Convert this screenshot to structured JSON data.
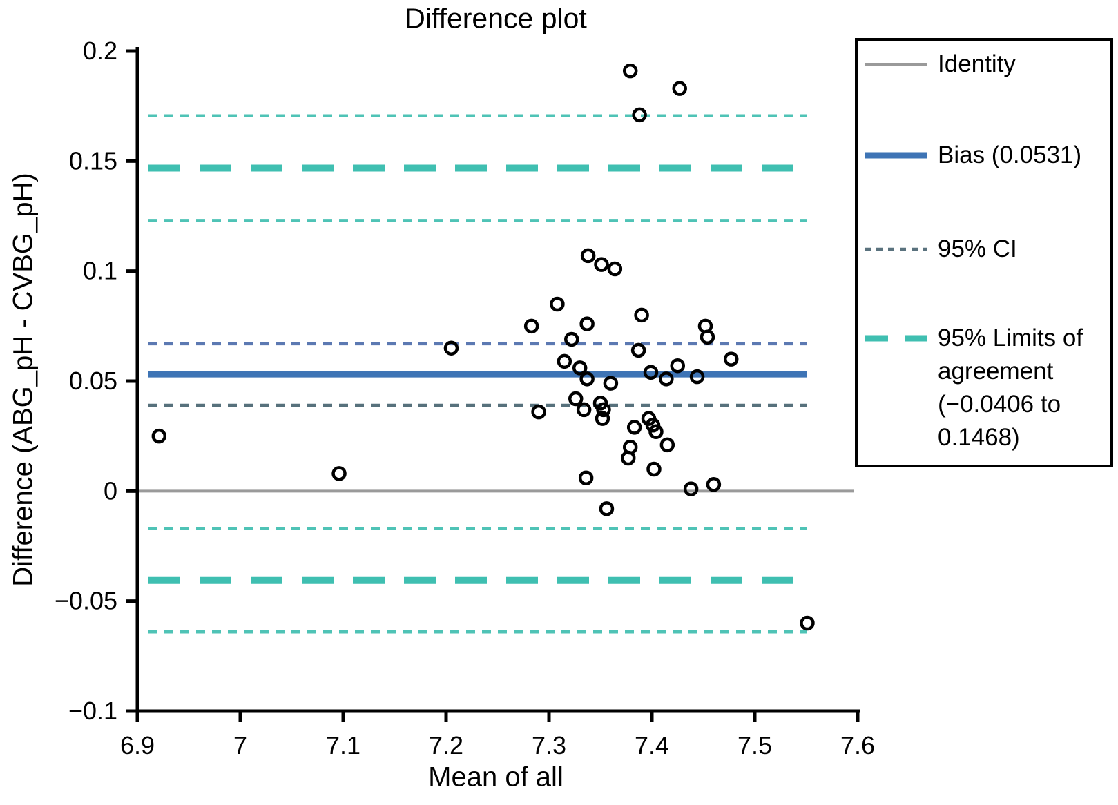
{
  "chart_data": {
    "type": "scatter",
    "title": "Difference plot",
    "xlabel": "Mean of all",
    "ylabel": "Difference (ABG_pH - CVBG_pH)",
    "xlim": [
      6.9,
      7.6
    ],
    "ylim": [
      -0.1,
      0.2
    ],
    "grid": false,
    "x_ticks": [
      {
        "value": 6.9,
        "label": "6.9"
      },
      {
        "value": 7.0,
        "label": "7"
      },
      {
        "value": 7.1,
        "label": "7.1"
      },
      {
        "value": 7.2,
        "label": "7.2"
      },
      {
        "value": 7.3,
        "label": "7.3"
      },
      {
        "value": 7.4,
        "label": "7.4"
      },
      {
        "value": 7.5,
        "label": "7.5"
      },
      {
        "value": 7.6,
        "label": "7.6"
      }
    ],
    "y_ticks": [
      {
        "value": 0.2,
        "label": "0.2"
      },
      {
        "value": 0.15,
        "label": "0.15"
      },
      {
        "value": 0.1,
        "label": "0.1"
      },
      {
        "value": 0.05,
        "label": "0.05"
      },
      {
        "value": 0,
        "label": "0"
      },
      {
        "value": -0.05,
        "label": "−0.05"
      },
      {
        "value": -0.1,
        "label": "−0.1"
      }
    ],
    "statistics": {
      "bias": 0.0531,
      "bias_ci": [
        0.039,
        0.067
      ],
      "loa_lower": -0.0406,
      "loa_upper": 0.1468,
      "loa_lower_ci": [
        -0.064,
        -0.017
      ],
      "loa_upper_ci": [
        0.123,
        0.1706
      ]
    },
    "lines": [
      {
        "name": "identity",
        "value": 0,
        "color": "#9A9A9A",
        "style": "solid",
        "weight": "thin",
        "full_width": true
      },
      {
        "name": "loa-upper-ci-upper",
        "value": 0.1706,
        "color": "#4FC3B6",
        "style": "dotted",
        "weight": "thin",
        "full_width": false
      },
      {
        "name": "loa-upper",
        "value": 0.1468,
        "color": "#3FBFB1",
        "style": "dashed",
        "weight": "thick",
        "full_width": false
      },
      {
        "name": "loa-upper-ci-lower",
        "value": 0.123,
        "color": "#4FC3B6",
        "style": "dotted",
        "weight": "thin",
        "full_width": false
      },
      {
        "name": "bias-ci-upper",
        "value": 0.067,
        "color": "#5C79B2",
        "style": "dotted",
        "weight": "thin",
        "full_width": false
      },
      {
        "name": "bias",
        "value": 0.0531,
        "color": "#3E74B5",
        "style": "solid",
        "weight": "thick",
        "full_width": false
      },
      {
        "name": "bias-ci-lower",
        "value": 0.039,
        "color": "#57717C",
        "style": "dotted",
        "weight": "thin",
        "full_width": false
      },
      {
        "name": "loa-lower-ci-upper",
        "value": -0.017,
        "color": "#4FC3B6",
        "style": "dotted",
        "weight": "thin",
        "full_width": false
      },
      {
        "name": "loa-lower",
        "value": -0.0406,
        "color": "#3FBFB1",
        "style": "dashed",
        "weight": "thick",
        "full_width": false
      },
      {
        "name": "loa-lower-ci-lower",
        "value": -0.064,
        "color": "#4FC3B6",
        "style": "dotted",
        "weight": "thin",
        "full_width": false
      }
    ],
    "marker": {
      "shape": "open-circle",
      "color": "#000000"
    },
    "points": [
      [
        6.921,
        0.025
      ],
      [
        7.096,
        0.008
      ],
      [
        7.205,
        0.065
      ],
      [
        7.283,
        0.075
      ],
      [
        7.29,
        0.036
      ],
      [
        7.308,
        0.085
      ],
      [
        7.315,
        0.059
      ],
      [
        7.322,
        0.069
      ],
      [
        7.326,
        0.042
      ],
      [
        7.33,
        0.056
      ],
      [
        7.334,
        0.037
      ],
      [
        7.336,
        0.006
      ],
      [
        7.337,
        0.076
      ],
      [
        7.337,
        0.051
      ],
      [
        7.338,
        0.107
      ],
      [
        7.35,
        0.04
      ],
      [
        7.351,
        0.103
      ],
      [
        7.352,
        0.033
      ],
      [
        7.353,
        0.037
      ],
      [
        7.356,
        -0.008
      ],
      [
        7.36,
        0.049
      ],
      [
        7.364,
        0.101
      ],
      [
        7.377,
        0.015
      ],
      [
        7.379,
        0.191
      ],
      [
        7.379,
        0.02
      ],
      [
        7.383,
        0.029
      ],
      [
        7.387,
        0.064
      ],
      [
        7.388,
        0.171
      ],
      [
        7.39,
        0.08
      ],
      [
        7.397,
        0.033
      ],
      [
        7.399,
        0.054
      ],
      [
        7.401,
        0.03
      ],
      [
        7.402,
        0.01
      ],
      [
        7.404,
        0.027
      ],
      [
        7.414,
        0.051
      ],
      [
        7.415,
        0.021
      ],
      [
        7.425,
        0.057
      ],
      [
        7.427,
        0.183
      ],
      [
        7.438,
        0.001
      ],
      [
        7.444,
        0.052
      ],
      [
        7.452,
        0.075
      ],
      [
        7.454,
        0.07
      ],
      [
        7.46,
        0.003
      ],
      [
        7.477,
        0.06
      ],
      [
        7.551,
        -0.06
      ]
    ],
    "legend": {
      "position": "right",
      "border_color": "#000000",
      "items": [
        {
          "label": "Identity",
          "swatch": "identity",
          "color": "#9A9A9A"
        },
        {
          "label": "Bias (0.0531)",
          "swatch": "bias",
          "color": "#3E74B5"
        },
        {
          "label": "95% CI",
          "swatch": "ci",
          "color": "#5A727E"
        },
        {
          "label": "95% Limits of\nagreement\n(−0.0406 to\n0.1468)",
          "swatch": "loa",
          "color": "#3FBFB1"
        }
      ]
    },
    "colors": {
      "background": "#FFFFFF",
      "axis": "#000000",
      "text": "#000000",
      "marker_stroke": "#000000"
    }
  }
}
